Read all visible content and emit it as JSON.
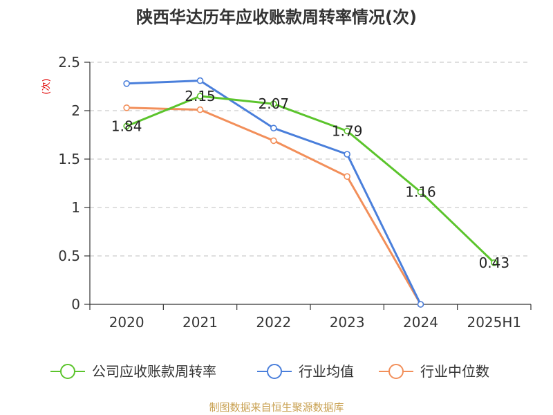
{
  "chart_data": {
    "type": "line",
    "title": "陕西华达历年应收账款周转率情况(次)",
    "ylabel": "(次)",
    "xlabel": "",
    "categories": [
      "2020",
      "2021",
      "2022",
      "2023",
      "2024",
      "2025H1"
    ],
    "ylim": [
      0,
      2.5
    ],
    "yticks": [
      0,
      0.5,
      1,
      1.5,
      2,
      2.5
    ],
    "ytick_labels": [
      "0",
      "0.5",
      "1",
      "1.5",
      "2",
      "2.5"
    ],
    "grid": "horizontal-dashed",
    "legend_position": "bottom",
    "series": [
      {
        "name": "公司应收账款周转率",
        "color": "#5bc42c",
        "values": [
          1.84,
          2.15,
          2.07,
          1.79,
          1.16,
          0.43
        ],
        "labels": [
          "1.84",
          "2.15",
          "2.07",
          "1.79",
          "1.16",
          "0.43"
        ],
        "show_labels": true
      },
      {
        "name": "行业均值",
        "color": "#4a7fdb",
        "values": [
          2.28,
          2.31,
          1.82,
          1.55,
          0.0,
          null
        ],
        "show_labels": false
      },
      {
        "name": "行业中位数",
        "color": "#f28f5a",
        "values": [
          2.03,
          2.01,
          1.69,
          1.32,
          0.0,
          null
        ],
        "show_labels": false
      }
    ]
  },
  "source": "制图数据来自恒生聚源数据库"
}
